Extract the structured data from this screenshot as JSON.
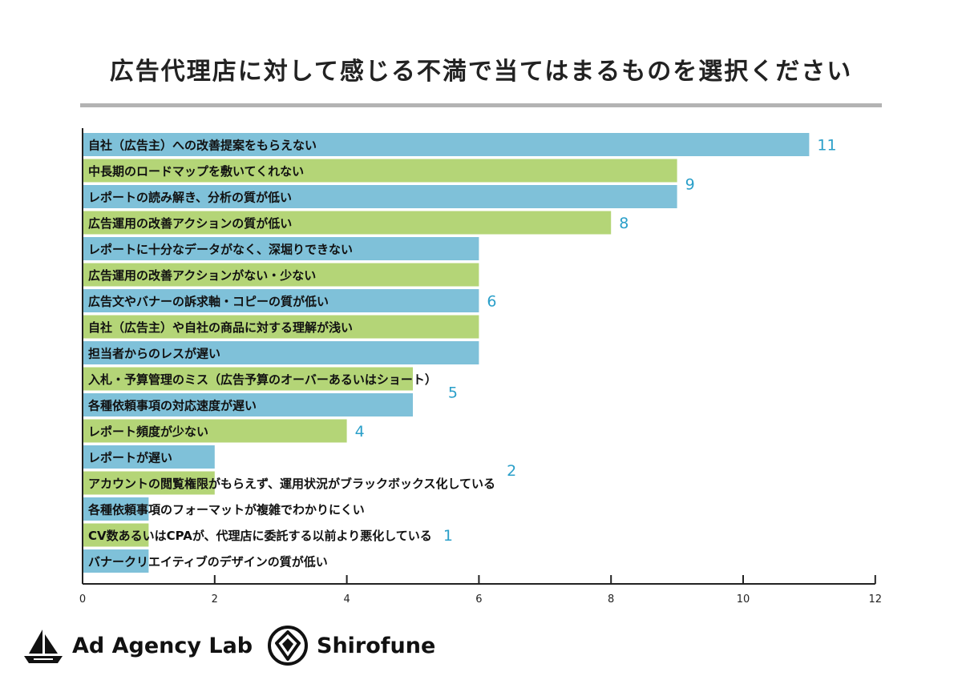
{
  "title": "広告代理店に対して感じる不満で当てはまるものを選択ください",
  "brands": {
    "left": "Ad Agency Lab",
    "right": "Shirofune"
  },
  "icons": {
    "left": "sailboat-logo-icon",
    "right": "shirofune-circle-logo-icon"
  },
  "colors": {
    "blue": "#7fc1d9",
    "green": "#b4d577",
    "value_text": "#2a9fc9",
    "rule": "#b3b3b3",
    "axis": "#222222"
  },
  "chart_data": {
    "type": "bar",
    "orientation": "horizontal",
    "title": "広告代理店に対して感じる不満で当てはまるものを選択ください",
    "xlim": [
      0,
      12
    ],
    "xticks": [
      0,
      2,
      4,
      6,
      8,
      10,
      12
    ],
    "grid": false,
    "categories": [
      "自社（広告主）への改善提案をもらえない",
      "中長期のロードマップを敷いてくれない",
      "レポートの読み解き、分析の質が低い",
      "広告運用の改善アクションの質が低い",
      "レポートに十分なデータがなく、深堀りできない",
      "広告運用の改善アクションがない・少ない",
      "広告文やバナーの訴求軸・コピーの質が低い",
      "自社（広告主）や自社の商品に対する理解が浅い",
      "担当者からのレスが遅い",
      "入札・予算管理のミス（広告予算のオーバーあるいはショート）",
      "各種依頼事項の対応速度が遅い",
      "レポート頻度が少ない",
      "レポートが遅い",
      "アカウントの閲覧権限がもらえず、運用状況がブラックボックス化している",
      "各種依頼事項のフォーマットが複雑でわかりにくい",
      "CV数あるいはCPAが、代理店に委託する以前より悪化している",
      "バナークリエイティブのデザインの質が低い"
    ],
    "values": [
      11,
      9,
      9,
      8,
      6,
      6,
      6,
      6,
      6,
      5,
      5,
      4,
      2,
      2,
      1,
      1,
      1
    ],
    "bar_colors": [
      "blue",
      "green",
      "blue",
      "green",
      "blue",
      "green",
      "blue",
      "green",
      "blue",
      "green",
      "blue",
      "green",
      "blue",
      "green",
      "blue",
      "green",
      "blue"
    ],
    "value_labels": [
      {
        "text": "11",
        "value": 11,
        "rows": [
          0
        ]
      },
      {
        "text": "9",
        "value": 9,
        "rows": [
          1,
          2
        ]
      },
      {
        "text": "8",
        "value": 8,
        "rows": [
          3
        ]
      },
      {
        "text": "6",
        "value": 6,
        "rows": [
          4,
          5,
          6,
          7,
          8
        ]
      },
      {
        "text": "5",
        "value": 5,
        "rows": [
          9,
          10
        ]
      },
      {
        "text": "4",
        "value": 4,
        "rows": [
          11
        ]
      },
      {
        "text": "2",
        "value": 2,
        "rows": [
          12,
          13
        ]
      },
      {
        "text": "1",
        "value": 1,
        "rows": [
          14,
          15,
          16
        ]
      }
    ]
  }
}
